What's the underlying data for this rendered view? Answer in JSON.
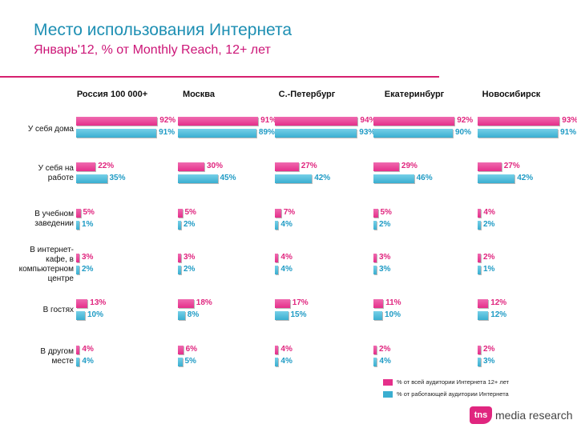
{
  "header": {
    "title": "Место использования Интернета",
    "subtitle": "Январь'12, % от Monthly Reach, 12+ лет"
  },
  "legend": {
    "all_label": "% от всей аудитории Интернета 12+ лет",
    "work_label": "% от работающей аудитории Интернета"
  },
  "colors": {
    "all": "#e52f8a",
    "work": "#3aaed0",
    "accent": "#d6206f"
  },
  "logo": {
    "mark": "tns",
    "text": "media research"
  },
  "chart_data": {
    "type": "bar",
    "title": "Место использования Интернета",
    "cities": [
      "Россия 100 000+",
      "Москва",
      "С.-Петербург",
      "Екатеринбург",
      "Новосибирск"
    ],
    "categories": [
      "У себя дома",
      "У себя на работе",
      "В учебном заведении",
      "В интернет-кафе, в компьютерном центре",
      "В гостях",
      "В другом месте"
    ],
    "series": [
      {
        "name": "% от всей аудитории Интернета 12+ лет",
        "values": [
          [
            92,
            91,
            94,
            92,
            93
          ],
          [
            22,
            30,
            27,
            29,
            27
          ],
          [
            5,
            5,
            7,
            5,
            4
          ],
          [
            3,
            3,
            4,
            3,
            2
          ],
          [
            13,
            18,
            17,
            11,
            12
          ],
          [
            4,
            6,
            4,
            2,
            2
          ]
        ]
      },
      {
        "name": "% от работающей аудитории Интернета",
        "values": [
          [
            91,
            89,
            93,
            90,
            91
          ],
          [
            35,
            45,
            42,
            46,
            42
          ],
          [
            1,
            2,
            4,
            2,
            2
          ],
          [
            2,
            2,
            4,
            3,
            1
          ],
          [
            10,
            8,
            15,
            10,
            12
          ],
          [
            4,
            5,
            4,
            4,
            3
          ]
        ]
      }
    ]
  }
}
